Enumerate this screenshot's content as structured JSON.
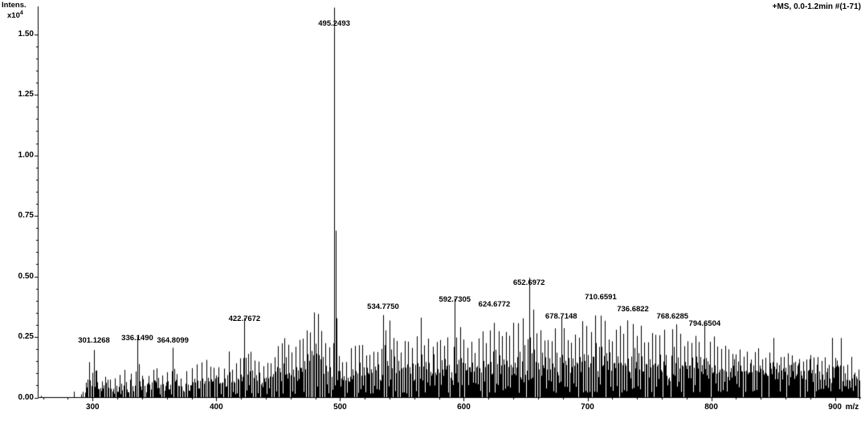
{
  "annotation": "+MS, 0.0-1.2min #(1-71)",
  "colors": {
    "background": "#ffffff",
    "foreground": "#000000"
  },
  "y_axis": {
    "title": "Intens.",
    "scale_base": "x10",
    "scale_exp": "4",
    "tick_labels": [
      "1.50",
      "1.25",
      "1.00",
      "0.75",
      "0.50",
      "0.25",
      "0.00"
    ],
    "tick_values": [
      1.5,
      1.25,
      1.0,
      0.75,
      0.5,
      0.25,
      0.0
    ],
    "minor_step": 0.05
  },
  "x_axis": {
    "tick_labels": [
      "300",
      "400",
      "500",
      "600",
      "700",
      "800",
      "900"
    ],
    "tick_values": [
      300,
      400,
      500,
      600,
      700,
      800,
      900
    ],
    "unit": "m/z",
    "minor_step": 20
  },
  "chart_data": {
    "type": "bar",
    "title": "+MS, 0.0-1.2min #(1-71)",
    "xlabel": "m/z",
    "ylabel": "Intens. x10^4",
    "x_range": [
      256,
      921
    ],
    "y_range": [
      0,
      1.615
    ],
    "grid": false,
    "labeled_peaks": [
      {
        "mz": 301.1268,
        "label": "301.1268",
        "intensity": 0.21
      },
      {
        "mz": 336.149,
        "label": "336.1490",
        "intensity": 0.22
      },
      {
        "mz": 364.8099,
        "label": "364.8099",
        "intensity": 0.21
      },
      {
        "mz": 422.7672,
        "label": "422.7672",
        "intensity": 0.3
      },
      {
        "mz": 495.2493,
        "label": "495.2493",
        "intensity": 1.52
      },
      {
        "mz": 534.775,
        "label": "534.7750",
        "intensity": 0.35
      },
      {
        "mz": 592.7305,
        "label": "592.7305",
        "intensity": 0.38
      },
      {
        "mz": 624.6772,
        "label": "624.6772",
        "intensity": 0.36
      },
      {
        "mz": 652.6972,
        "label": "652.6972",
        "intensity": 0.45
      },
      {
        "mz": 678.7148,
        "label": "678.7148",
        "intensity": 0.31
      },
      {
        "mz": 710.6591,
        "label": "710.6591",
        "intensity": 0.39
      },
      {
        "mz": 736.6822,
        "label": "736.6822",
        "intensity": 0.34
      },
      {
        "mz": 768.6285,
        "label": "768.6285",
        "intensity": 0.31
      },
      {
        "mz": 794.6504,
        "label": "794.6504",
        "intensity": 0.28
      }
    ],
    "unlabeled_peaks": [
      [
        297,
        0.13
      ],
      [
        303,
        0.1
      ],
      [
        310,
        0.09
      ],
      [
        314,
        0.07
      ],
      [
        318,
        0.08
      ],
      [
        322,
        0.09
      ],
      [
        326,
        0.1
      ],
      [
        331,
        0.09
      ],
      [
        340,
        0.09
      ],
      [
        345,
        0.1
      ],
      [
        349,
        0.11
      ],
      [
        352,
        0.12
      ],
      [
        356,
        0.1
      ],
      [
        360,
        0.11
      ],
      [
        368,
        0.09
      ],
      [
        371,
        0.09
      ],
      [
        376,
        0.1
      ],
      [
        380,
        0.11
      ],
      [
        384,
        0.12
      ],
      [
        388,
        0.14
      ],
      [
        392,
        0.16
      ],
      [
        395,
        0.12
      ],
      [
        398,
        0.12
      ],
      [
        402,
        0.11
      ],
      [
        406,
        0.12
      ],
      [
        410,
        0.17
      ],
      [
        413,
        0.13
      ],
      [
        416,
        0.14
      ],
      [
        419,
        0.15
      ],
      [
        426,
        0.17
      ],
      [
        428,
        0.2
      ],
      [
        431,
        0.16
      ],
      [
        434,
        0.15
      ],
      [
        438,
        0.14
      ],
      [
        441,
        0.15
      ],
      [
        444,
        0.16
      ],
      [
        447,
        0.18
      ],
      [
        450,
        0.22
      ],
      [
        453,
        0.24
      ],
      [
        455,
        0.26
      ],
      [
        458,
        0.19
      ],
      [
        461,
        0.18
      ],
      [
        464,
        0.2
      ],
      [
        467,
        0.21
      ],
      [
        470,
        0.24
      ],
      [
        473,
        0.26
      ],
      [
        476,
        0.3
      ],
      [
        479,
        0.33
      ],
      [
        482,
        0.34
      ],
      [
        485,
        0.28
      ],
      [
        488,
        0.22
      ],
      [
        491,
        0.2
      ],
      [
        499,
        0.16
      ],
      [
        502,
        0.14
      ],
      [
        505,
        0.13
      ],
      [
        509,
        0.18
      ],
      [
        512,
        0.2
      ],
      [
        515,
        0.22
      ],
      [
        518,
        0.2
      ],
      [
        521,
        0.18
      ],
      [
        524,
        0.19
      ],
      [
        527,
        0.21
      ],
      [
        530,
        0.22
      ],
      [
        537,
        0.28
      ],
      [
        540,
        0.3
      ],
      [
        543,
        0.25
      ],
      [
        546,
        0.22
      ],
      [
        549,
        0.2
      ],
      [
        552,
        0.22
      ],
      [
        555,
        0.24
      ],
      [
        558,
        0.22
      ],
      [
        562,
        0.26
      ],
      [
        565,
        0.3
      ],
      [
        568,
        0.25
      ],
      [
        571,
        0.23
      ],
      [
        575,
        0.21
      ],
      [
        578,
        0.22
      ],
      [
        581,
        0.23
      ],
      [
        584,
        0.25
      ],
      [
        587,
        0.26
      ],
      [
        597,
        0.28
      ],
      [
        600,
        0.25
      ],
      [
        603,
        0.23
      ],
      [
        606,
        0.22
      ],
      [
        609,
        0.21
      ],
      [
        612,
        0.23
      ],
      [
        615,
        0.24
      ],
      [
        618,
        0.26
      ],
      [
        621,
        0.28
      ],
      [
        628,
        0.27
      ],
      [
        631,
        0.25
      ],
      [
        634,
        0.24
      ],
      [
        637,
        0.25
      ],
      [
        640,
        0.28
      ],
      [
        644,
        0.3
      ],
      [
        648,
        0.33
      ],
      [
        656,
        0.32
      ],
      [
        659,
        0.28
      ],
      [
        662,
        0.27
      ],
      [
        665,
        0.25
      ],
      [
        668,
        0.24
      ],
      [
        671,
        0.26
      ],
      [
        674,
        0.27
      ],
      [
        681,
        0.26
      ],
      [
        684,
        0.25
      ],
      [
        687,
        0.24
      ],
      [
        690,
        0.26
      ],
      [
        693,
        0.27
      ],
      [
        696,
        0.29
      ],
      [
        699,
        0.3
      ],
      [
        703,
        0.31
      ],
      [
        706,
        0.33
      ],
      [
        714,
        0.31
      ],
      [
        717,
        0.28
      ],
      [
        720,
        0.26
      ],
      [
        723,
        0.25
      ],
      [
        726,
        0.26
      ],
      [
        729,
        0.27
      ],
      [
        732,
        0.29
      ],
      [
        740,
        0.28
      ],
      [
        743,
        0.26
      ],
      [
        746,
        0.25
      ],
      [
        749,
        0.24
      ],
      [
        752,
        0.24
      ],
      [
        755,
        0.25
      ],
      [
        758,
        0.26
      ],
      [
        762,
        0.28
      ],
      [
        772,
        0.27
      ],
      [
        775,
        0.24
      ],
      [
        778,
        0.23
      ],
      [
        781,
        0.22
      ],
      [
        784,
        0.24
      ],
      [
        787,
        0.25
      ],
      [
        790,
        0.26
      ],
      [
        799,
        0.23
      ],
      [
        802,
        0.21
      ],
      [
        805,
        0.2
      ],
      [
        808,
        0.21
      ],
      [
        811,
        0.2
      ],
      [
        814,
        0.19
      ],
      [
        817,
        0.21
      ],
      [
        820,
        0.2
      ],
      [
        823,
        0.18
      ],
      [
        826,
        0.19
      ],
      [
        829,
        0.2
      ],
      [
        832,
        0.18
      ],
      [
        835,
        0.17
      ],
      [
        838,
        0.19
      ],
      [
        841,
        0.18
      ],
      [
        844,
        0.17
      ],
      [
        847,
        0.18
      ],
      [
        850,
        0.19
      ],
      [
        853,
        0.16
      ],
      [
        856,
        0.17
      ],
      [
        859,
        0.16
      ],
      [
        862,
        0.18
      ],
      [
        865,
        0.16
      ],
      [
        868,
        0.17
      ],
      [
        871,
        0.16
      ],
      [
        874,
        0.17
      ],
      [
        877,
        0.15
      ],
      [
        880,
        0.16
      ],
      [
        883,
        0.15
      ],
      [
        886,
        0.16
      ],
      [
        889,
        0.14
      ],
      [
        892,
        0.16
      ],
      [
        895,
        0.15
      ],
      [
        898,
        0.14
      ],
      [
        901,
        0.15
      ],
      [
        904,
        0.14
      ],
      [
        907,
        0.15
      ],
      [
        910,
        0.13
      ],
      [
        913,
        0.14
      ],
      [
        916,
        0.12
      ],
      [
        919,
        0.12
      ]
    ],
    "noise": {
      "seed": 7,
      "start_mz": 288,
      "end_mz": 920,
      "base_height": 0.07,
      "end_height": 0.17,
      "base_density": 0.5,
      "end_density": 0.95
    }
  }
}
